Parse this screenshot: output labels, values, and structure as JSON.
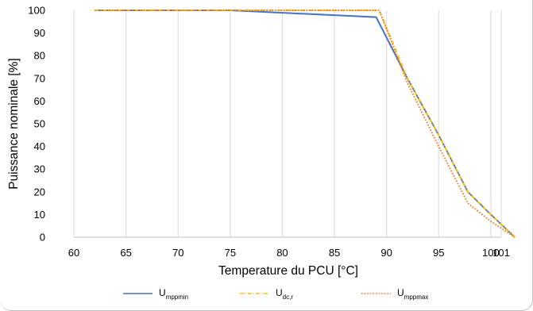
{
  "chart_data": {
    "type": "line",
    "xlabel": "Temperature du PCU [°C]",
    "ylabel": "Puissance nominale [%]",
    "xlim": [
      60,
      101
    ],
    "ylim": [
      0,
      100
    ],
    "xticks": [
      60,
      65,
      70,
      75,
      80,
      85,
      90,
      95,
      100,
      101
    ],
    "yticks": [
      0,
      10,
      20,
      30,
      40,
      50,
      60,
      70,
      80,
      90,
      100
    ],
    "grid": "vertical",
    "legend_position": "bottom",
    "series": [
      {
        "name": "U_mppmin",
        "legend_main": "U",
        "legend_sub": "mppmin",
        "color": "#4472C4",
        "style": "solid",
        "x": [
          62,
          75,
          89,
          92,
          95,
          97.8,
          100,
          102.3
        ],
        "y": [
          100,
          100,
          97,
          70,
          45,
          20,
          10,
          0
        ]
      },
      {
        "name": "U_dc,r",
        "legend_main": "U",
        "legend_sub": "dc,r",
        "color": "#FFC000",
        "style": "dashdot",
        "x": [
          62,
          75,
          89.3,
          92,
          95,
          97.8,
          100,
          102.3
        ],
        "y": [
          100,
          100,
          100,
          70,
          45,
          20,
          10,
          0
        ]
      },
      {
        "name": "U_mppmax",
        "legend_main": "U",
        "legend_sub": "mppmax",
        "color": "#ED7D31",
        "style": "dotted",
        "x": [
          62,
          75,
          89.3,
          92,
          95,
          97.8,
          100,
          102.3
        ],
        "y": [
          100,
          100,
          100,
          68,
          40,
          15,
          7,
          0
        ]
      }
    ]
  }
}
